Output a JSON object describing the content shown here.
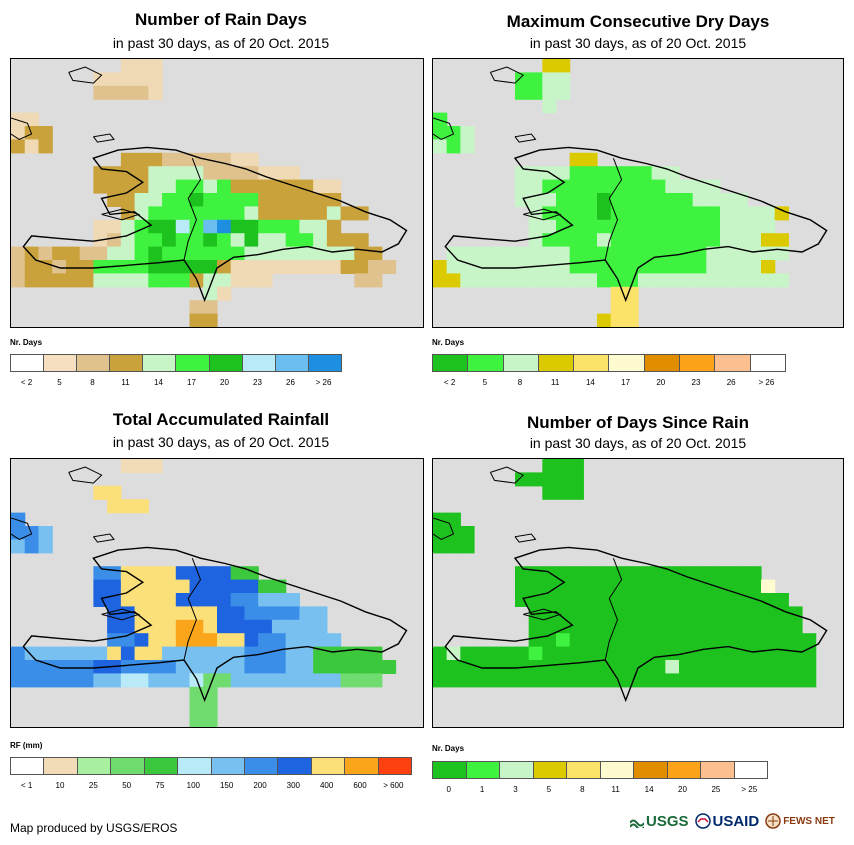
{
  "panels": [
    {
      "title": "Number of Rain Days",
      "subtitle": "in past 30 days, as of 20 Oct. 2015",
      "legend_title": "Nr. Days",
      "legend_colors": [
        "#ffffff",
        "#f5dfc0",
        "#dfc28e",
        "#c9a23c",
        "#c8f5c8",
        "#3ff23f",
        "#1ec21e",
        "#b8eaf8",
        "#6bbef0",
        "#1e8ee0"
      ],
      "legend_labels": [
        "< 2",
        "5",
        "8",
        "11",
        "14",
        "17",
        "20",
        "23",
        "26",
        "> 26"
      ],
      "palette": [
        "#dddddd",
        "#f0d9b5",
        "#dfc28e",
        "#c9a23c",
        "#c8f5c8",
        "#3ff23f",
        "#1ec21e",
        "#b8eaf8",
        "#6bbef0",
        "#1e8ee0"
      ],
      "grid": [
        "000000001110000000000000000000",
        "000000111110000000000000000000",
        "000000222210000000000000000000",
        "000000000000000000000000000000",
        "110000000000000000000000000000",
        "133000000000000000000000000000",
        "313000000000000000000000000000",
        "000000003332222211000000000000",
        "000000333344442222111000000000",
        "000000333344554533333311000000",
        "000000033445565555333333000000",
        "000000003455555554333334330000",
        "000000114566758966555443000000",
        "000000124556556546445543330000",
        "232332244565555554444444433000",
        "233233555566666311111111332200",
        "233333444455534411100000022000",
        "000000000000004100000000000000",
        "000000000000022000000000000000",
        "000000000000033000000000000000"
      ]
    },
    {
      "title": "Maximum Consecutive Dry Days",
      "subtitle": "in past 30 days, as of 20 Oct. 2015",
      "legend_title": "Nr. Days",
      "legend_colors": [
        "#1ec21e",
        "#3ff23f",
        "#c8f5c8",
        "#dcca00",
        "#fbe36a",
        "#fffbd0",
        "#e08d00",
        "#fca31a",
        "#fcbf8f",
        "#ffffff"
      ],
      "legend_labels": [
        "< 2",
        "5",
        "8",
        "11",
        "14",
        "17",
        "20",
        "23",
        "26",
        "> 26"
      ],
      "palette": [
        "#dddddd",
        "#1ec21e",
        "#3ff23f",
        "#c8f5c8",
        "#dcca00",
        "#fbe36a",
        "#fffbd0",
        "#e08d00",
        "#fca31a",
        "#fcbf8f"
      ],
      "grid": [
        "000000004400000000000000000000",
        "000000223300000000000000000000",
        "000000223300000000000000000000",
        "000000003000000000000000000000",
        "200000000000000000000000000000",
        "223000000000000000000000000000",
        "323000000000000000000000000000",
        "000000000044000000000000000000",
        "000000333322222233000000000000",
        "000000332222222223333000000000",
        "000000333222122222233330000000",
        "000000032222122222222333340000",
        "000000033222222222222333300000",
        "000000032222322222222333440000",
        "033333333322222222223333330000",
        "433333333322222222223333400000",
        "443333333333222333333333330000",
        "000000000000055000000000000000",
        "000000000000055000000000000000",
        "000000000000455000000000000000"
      ]
    },
    {
      "title": "Total Accumulated Rainfall",
      "subtitle": "in past 30 days, as of 20 Oct. 2015",
      "legend_title": "RF (mm)",
      "legend_colors": [
        "#ffffff",
        "#f2dcb8",
        "#a8f0a0",
        "#70dc70",
        "#3cc83c",
        "#b8eaf8",
        "#78c0f0",
        "#3a8ee8",
        "#1e64e0",
        "#fbe07a",
        "#fba51a",
        "#fc4010"
      ],
      "legend_labels": [
        "< 1",
        "10",
        "25",
        "50",
        "75",
        "100",
        "150",
        "200",
        "300",
        "400",
        "600",
        "> 600"
      ],
      "palette": [
        "#dddddd",
        "#f2dcb8",
        "#a8f0a0",
        "#70dc70",
        "#3cc83c",
        "#b8eaf8",
        "#78c0f0",
        "#3a8ee8",
        "#1e64e0",
        "#fbe07a",
        "#fba51a",
        "#fc4010"
      ],
      "grid": [
        "000000001110000000000000000000",
        "000000000000000000000000000000",
        "000000990000000000000000000000",
        "000000099900000000000000000000",
        "700000000000000000000000000000",
        "776000000000000000000000000000",
        "676000000000000000000000000000",
        "000000000000000000000000000000",
        "000000779999888844000000000000",
        "000000889999988888440000000000",
        "000000889999888877666000000000",
        "000000088999999887777660000000",
        "000000088999aa988886666000000",
        "000000077899aaa99877666600000",
        "766666698996666667776644444000",
        "777777887777666667776644444400",
        "777777665566653366666666333000",
        "000000000000033000000000000000",
        "000000000000033000000000000000",
        "000000000000033000000000000000"
      ]
    },
    {
      "title": "Number of Days Since Rain",
      "subtitle": "in past 30 days, as of 20 Oct. 2015",
      "legend_title": "Nr. Days",
      "legend_colors": [
        "#1ec21e",
        "#3ff23f",
        "#c8f5c8",
        "#dcca00",
        "#fbe36a",
        "#fffbd0",
        "#e08d00",
        "#fca31a",
        "#fcbf8f",
        "#ffffff"
      ],
      "legend_labels": [
        "0",
        "1",
        "3",
        "5",
        "8",
        "11",
        "14",
        "20",
        "25",
        "> 25"
      ],
      "palette": [
        "#dddddd",
        "#1ec21e",
        "#3ff23f",
        "#c8f5c8",
        "#dcca00",
        "#fbe36a",
        "#fffbd0",
        "#e08d00",
        "#fca31a",
        "#fcbf8f"
      ],
      "grid": [
        "000000001110000000000000000000",
        "000000111110000000000000000000",
        "000000001110000000000000000000",
        "000000000000000000000000000000",
        "110000000000000000000000000000",
        "111000000000000000000000000000",
        "111000000000000000000000000000",
        "000000000000000000000000000000",
        "000000111111111111111111000000",
        "000000111111111111111111600000",
        "000000111111111111111111110000",
        "000000011111111111111111111000",
        "000000011111111111111111111000",
        "000000011211111111111111111100",
        "131111121111111111111111111100",
        "111111111111111113111111111100",
        "111111111111111111111111111100",
        "000000000000000000000000000000",
        "000000000000000000000000000000",
        "000000000000000000000000000000"
      ]
    }
  ],
  "footer": {
    "credit": "Map produced by USGS/EROS",
    "logo_usgs": "USGS",
    "logo_usaid": "USAID",
    "logo_fews": "FEWS NET"
  }
}
